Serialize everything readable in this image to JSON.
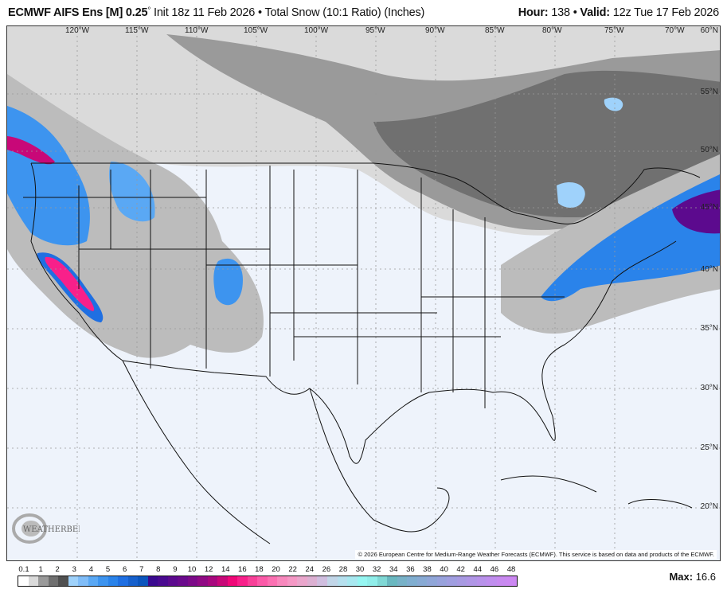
{
  "header": {
    "model": "ECMWF AIFS Ens [M] 0.25",
    "degree": "°",
    "init": "Init 18z 11 Feb 2026",
    "separator": "•",
    "product": "Total Snow (10:1 Ratio) (Inches)",
    "hour_label": "Hour:",
    "hour": "138",
    "valid_label": "Valid:",
    "valid": "12z Tue 17 Feb 2026"
  },
  "map": {
    "longitude_labels": [
      "120°W",
      "115°W",
      "110°W",
      "105°W",
      "100°W",
      "95°W",
      "90°W",
      "85°W",
      "80°W",
      "75°W",
      "70°W"
    ],
    "latitude_labels": [
      "60°N",
      "55°N",
      "50°N",
      "45°N",
      "40°N",
      "35°N",
      "30°N",
      "25°N",
      "20°N"
    ],
    "copyright": "© 2026 European Centre for Medium-Range Weather Forecasts (ECMWF). This service is based on data and products of the ECMWF.",
    "logo_text": "WeatherBELL",
    "logo_subtext": "Analytics LLC",
    "background_color": "#eef3fb"
  },
  "legend": {
    "labels": [
      "0.1",
      "1",
      "2",
      "3",
      "4",
      "5",
      "6",
      "7",
      "8",
      "9",
      "10",
      "12",
      "14",
      "16",
      "18",
      "20",
      "22",
      "24",
      "26",
      "28",
      "30",
      "32",
      "34",
      "36",
      "38",
      "40",
      "42",
      "44",
      "46",
      "48"
    ],
    "colors": [
      "#ffffff",
      "#dadada",
      "#9a9a9a",
      "#707070",
      "#505050",
      "#9fd2fb",
      "#80bdf8",
      "#5aa8f4",
      "#3d94ef",
      "#2a83ea",
      "#1f6fe2",
      "#1660cc",
      "#0b55bd",
      "#3a0a8f",
      "#4a0a90",
      "#5c0a8e",
      "#6a0a8c",
      "#7c0a88",
      "#900a84",
      "#a8087e",
      "#c80878",
      "#f00878",
      "#f8208a",
      "#f84098",
      "#fb5aa8",
      "#fb70b2",
      "#f888bd",
      "#f598c5",
      "#eaa6cc",
      "#dcb0d2",
      "#d0bedf",
      "#c2d6e8",
      "#b6e0ee",
      "#a8e8f0",
      "#96f6f2",
      "#90eeea",
      "#80d8d5",
      "#6ab8c0",
      "#78b2c8",
      "#80aed0",
      "#88aad4",
      "#90a6d8",
      "#98a2dc",
      "#a09ee0",
      "#a89ae2",
      "#b096e6",
      "#b892ea",
      "#c08eee",
      "#c88af0",
      "#cc88f2"
    ]
  },
  "max": {
    "label": "Max:",
    "value": "16.6"
  }
}
